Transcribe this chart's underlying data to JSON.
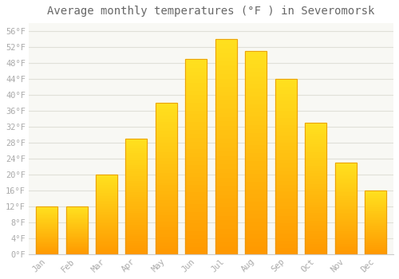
{
  "title": "Average monthly temperatures (°F ) in Severomorsk",
  "months": [
    "Jan",
    "Feb",
    "Mar",
    "Apr",
    "May",
    "Jun",
    "Jul",
    "Aug",
    "Sep",
    "Oct",
    "Nov",
    "Dec"
  ],
  "values": [
    12,
    12,
    20,
    29,
    38,
    49,
    54,
    51,
    44,
    33,
    23,
    16
  ],
  "bar_color": "#FFA500",
  "bar_color_light": "#FFD050",
  "bar_edge_color": "#E8960A",
  "ylim": [
    0,
    58
  ],
  "yticks": [
    0,
    4,
    8,
    12,
    16,
    20,
    24,
    28,
    32,
    36,
    40,
    44,
    48,
    52,
    56
  ],
  "ytick_labels": [
    "0°F",
    "4°F",
    "8°F",
    "12°F",
    "16°F",
    "20°F",
    "24°F",
    "28°F",
    "32°F",
    "36°F",
    "40°F",
    "44°F",
    "48°F",
    "52°F",
    "56°F"
  ],
  "background_color": "#FFFFFF",
  "plot_bg_color": "#F8F8F4",
  "grid_color": "#E0E0D8",
  "title_fontsize": 10,
  "tick_fontsize": 7.5,
  "tick_font_color": "#AAAAAA",
  "bar_width": 0.72,
  "figsize": [
    5.0,
    3.5
  ],
  "dpi": 100
}
